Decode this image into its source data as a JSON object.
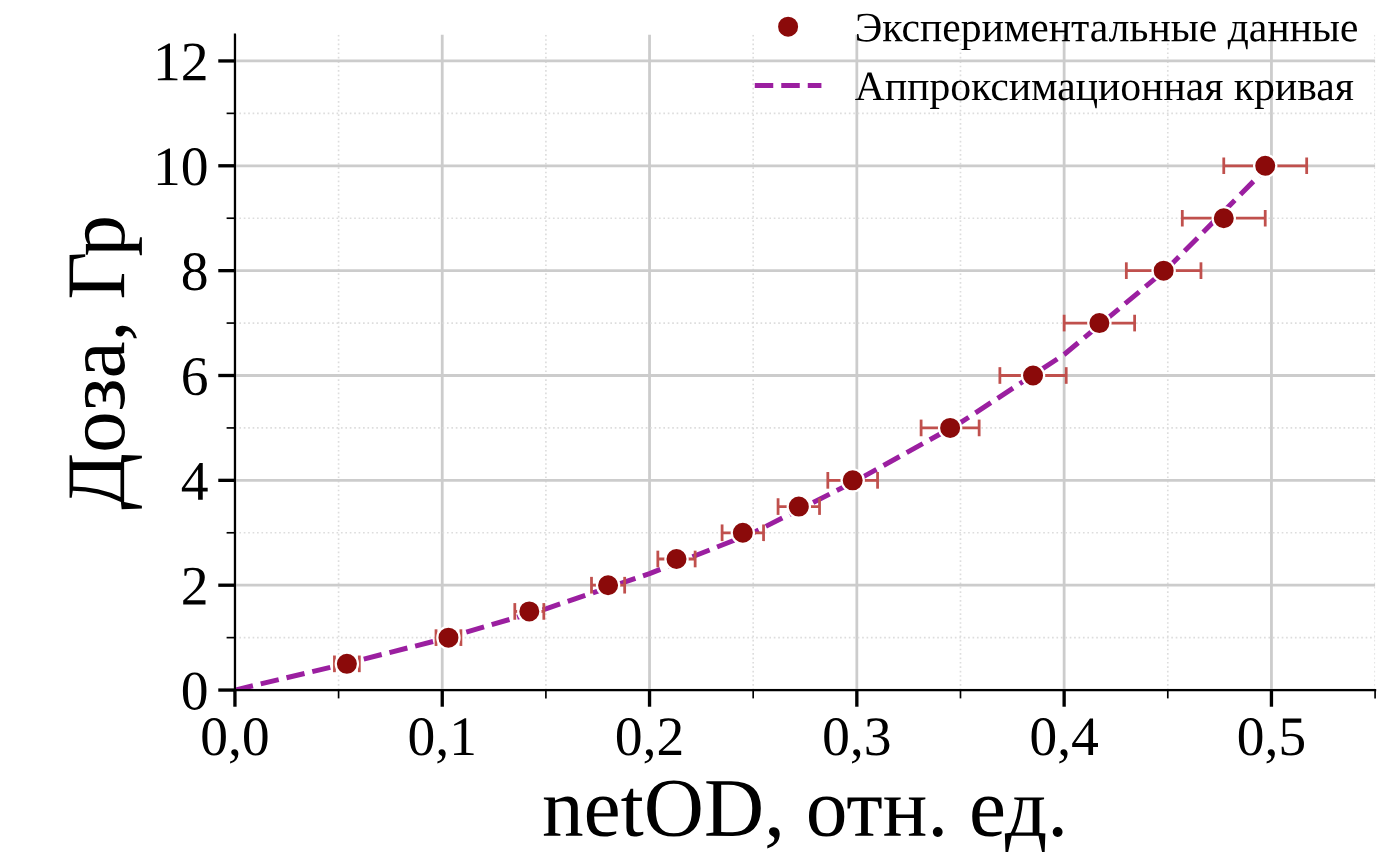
{
  "chart_data": {
    "type": "scatter",
    "xlabel": "netOD, отн. ед.",
    "ylabel": "Доза, Гр",
    "xlim": [
      0,
      0.55
    ],
    "ylim": [
      0,
      12.5
    ],
    "xticks": [
      {
        "value": 0,
        "label": "0,0"
      },
      {
        "value": 0.1,
        "label": "0,1"
      },
      {
        "value": 0.2,
        "label": "0,2"
      },
      {
        "value": 0.3,
        "label": "0,3"
      },
      {
        "value": 0.4,
        "label": "0,4"
      },
      {
        "value": 0.5,
        "label": "0,5"
      }
    ],
    "yticks": [
      0,
      2,
      4,
      6,
      8,
      10,
      12
    ],
    "grid": true,
    "legend": "top right",
    "series": [
      {
        "name": "Экспериментальные данные",
        "color": "#8b0a0a",
        "marker": "circle",
        "x": [
          0.054,
          0.103,
          0.142,
          0.18,
          0.213,
          0.245,
          0.272,
          0.298,
          0.345,
          0.385,
          0.417,
          0.448,
          0.477,
          0.497
        ],
        "values": [
          0.5,
          1.0,
          1.5,
          2.0,
          2.5,
          3.0,
          3.5,
          4.0,
          5.0,
          6.0,
          7.0,
          8.0,
          9.0,
          10.0
        ],
        "xerrors": [
          0.006,
          0.006,
          0.007,
          0.008,
          0.009,
          0.01,
          0.01,
          0.012,
          0.014,
          0.016,
          0.017,
          0.018,
          0.02,
          0.02
        ]
      },
      {
        "name": "Аппроксимационная кривая",
        "type": "line",
        "color": "#9b1fa0",
        "line_style": "dashed",
        "x": [
          0,
          0.05,
          0.1,
          0.15,
          0.2,
          0.25,
          0.3,
          0.35,
          0.4,
          0.45,
          0.5
        ],
        "values": [
          0,
          0.47,
          0.97,
          1.55,
          2.22,
          3.0,
          4.0,
          5.1,
          6.4,
          8.05,
          10.05
        ]
      }
    ]
  }
}
